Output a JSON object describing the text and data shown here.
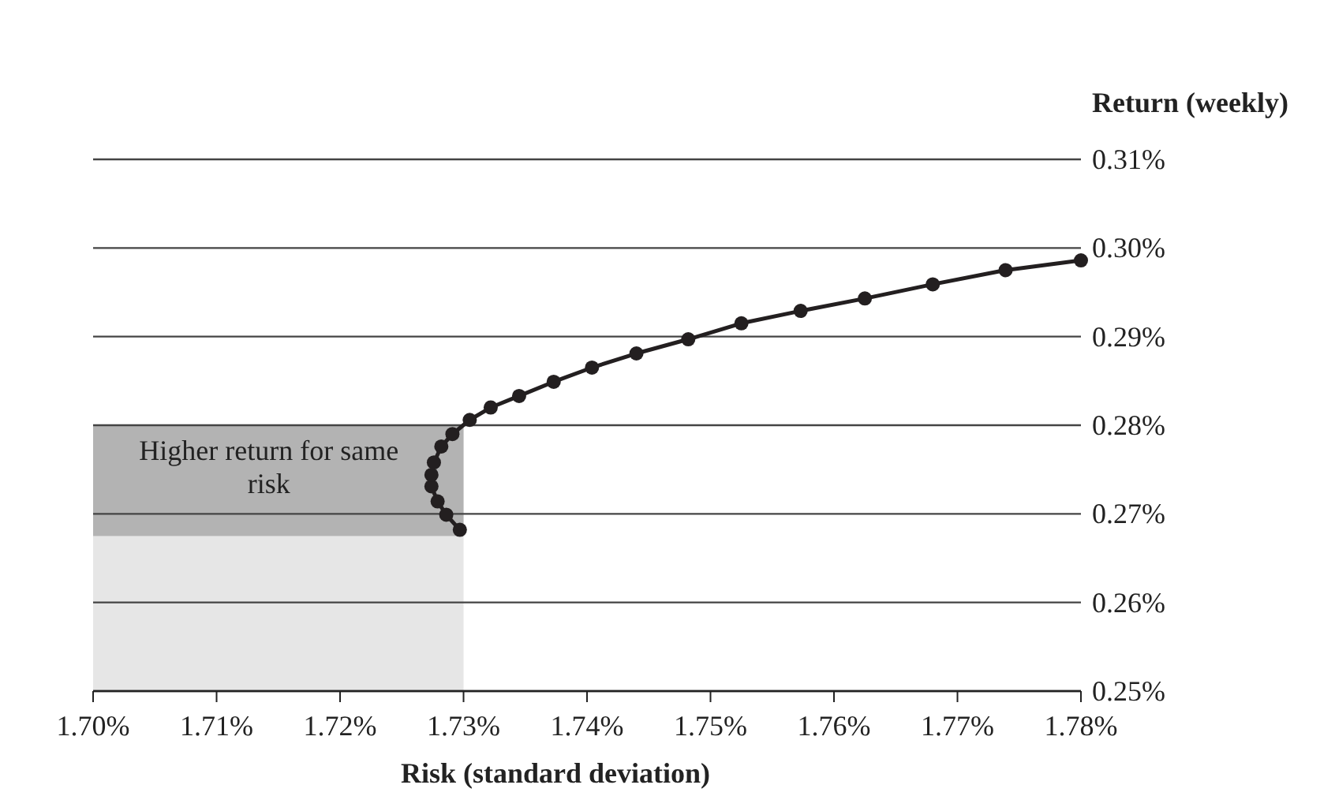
{
  "chart_data": {
    "type": "line",
    "xlabel": "Risk (standard deviation)",
    "ylabel": "Return (weekly)",
    "xlim": [
      1.7,
      1.78
    ],
    "xticks": [
      {
        "value": 1.7,
        "label": "1.70%"
      },
      {
        "value": 1.71,
        "label": "1.71%"
      },
      {
        "value": 1.72,
        "label": "1.72%"
      },
      {
        "value": 1.73,
        "label": "1.73%"
      },
      {
        "value": 1.74,
        "label": "1.74%"
      },
      {
        "value": 1.75,
        "label": "1.75%"
      },
      {
        "value": 1.76,
        "label": "1.76%"
      },
      {
        "value": 1.77,
        "label": "1.77%"
      },
      {
        "value": 1.78,
        "label": "1.78%"
      }
    ],
    "ylim": [
      0.25,
      0.31
    ],
    "yticks": [
      {
        "value": 0.25,
        "label": "0.25%"
      },
      {
        "value": 0.26,
        "label": "0.26%"
      },
      {
        "value": 0.27,
        "label": "0.27%"
      },
      {
        "value": 0.28,
        "label": "0.28%"
      },
      {
        "value": 0.29,
        "label": "0.29%"
      },
      {
        "value": 0.3,
        "label": "0.30%"
      },
      {
        "value": 0.31,
        "label": "0.31%"
      }
    ],
    "grid": "y",
    "marker": "circle",
    "line_style": "solid",
    "bands": [
      {
        "axis": "x",
        "from": 1.7,
        "to": 1.73,
        "color": "#e6e6e6"
      },
      {
        "axis": "y",
        "from": 0.2675,
        "to": 0.28,
        "label": "Higher return for same risk",
        "color": "#b3b3b3"
      }
    ],
    "series": [
      {
        "color": "#231f20",
        "x": [
          1.7297,
          1.7286,
          1.7279,
          1.7274,
          1.7274,
          1.7276,
          1.7282,
          1.7291,
          1.7305,
          1.7322,
          1.7345,
          1.7373,
          1.7404,
          1.744,
          1.7482,
          1.7525,
          1.7573,
          1.7625,
          1.768,
          1.7739,
          1.78
        ],
        "values": [
          0.2682,
          0.2699,
          0.2714,
          0.2731,
          0.2744,
          0.2758,
          0.2776,
          0.279,
          0.2806,
          0.282,
          0.2833,
          0.2849,
          0.2865,
          0.2881,
          0.2897,
          0.2915,
          0.2929,
          0.2943,
          0.2959,
          0.2975,
          0.2986
        ]
      }
    ]
  }
}
